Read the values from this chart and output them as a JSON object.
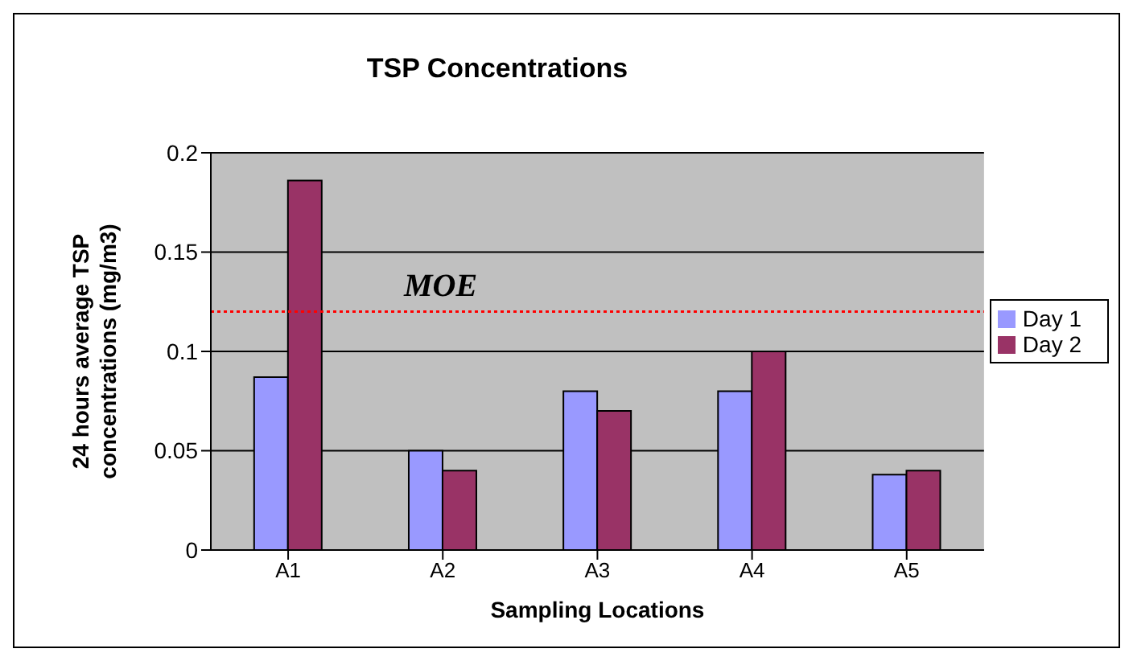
{
  "chart_data": {
    "type": "bar",
    "title": "TSP Concentrations",
    "xlabel": "Sampling Locations",
    "ylabel": "24 hours average TSP concentrations (mg/m3)",
    "categories": [
      "A1",
      "A2",
      "A3",
      "A4",
      "A5"
    ],
    "series": [
      {
        "name": "Day 1",
        "color": "#9999ff",
        "values": [
          0.087,
          0.05,
          0.08,
          0.08,
          0.038
        ]
      },
      {
        "name": "Day 2",
        "color": "#993366",
        "values": [
          0.186,
          0.04,
          0.07,
          0.1,
          0.04
        ]
      }
    ],
    "ylim": [
      0,
      0.2
    ],
    "yticks": [
      0,
      0.05,
      0.1,
      0.15,
      0.2
    ],
    "grid": "y",
    "legend": "right",
    "ref_lines": [
      {
        "axis": "y",
        "value": 0.12,
        "label": "MOE",
        "color": "#ff0000",
        "line_style": "dotted"
      }
    ]
  }
}
